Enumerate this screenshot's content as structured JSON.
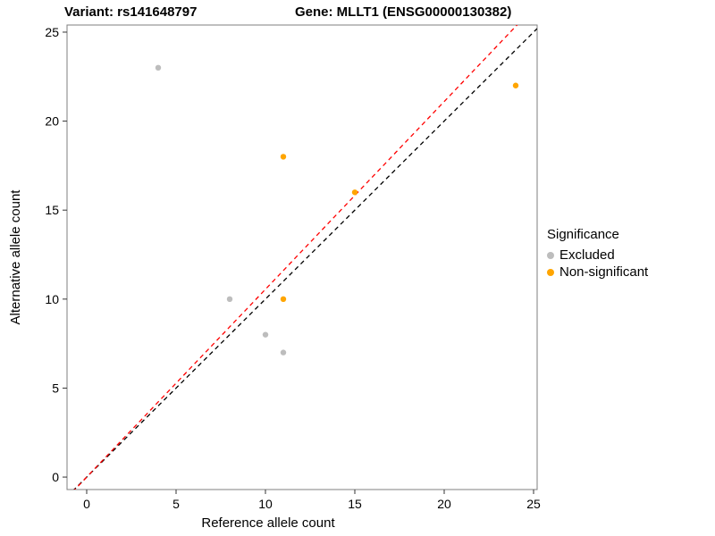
{
  "titles": {
    "variant": "Variant: rs141648797",
    "gene": "Gene: MLLT1 (ENSG00000130382)"
  },
  "axes": {
    "x_label": "Reference allele count",
    "y_label": "Alternative allele count"
  },
  "legend": {
    "title": "Significance",
    "items": [
      {
        "label": "Excluded",
        "color": "#BDBDBD"
      },
      {
        "label": "Non-significant",
        "color": "#FFA500"
      }
    ]
  },
  "chart_data": {
    "type": "scatter",
    "title": "Variant: rs141648797 | Gene: MLLT1 (ENSG00000130382)",
    "xlabel": "Reference allele count",
    "ylabel": "Alternative allele count",
    "xlim": [
      -1.1,
      25.2
    ],
    "ylim": [
      -0.7,
      25.4
    ],
    "x_ticks": [
      0,
      5,
      10,
      15,
      20,
      25
    ],
    "y_ticks": [
      0,
      5,
      10,
      15,
      20,
      25
    ],
    "grid": false,
    "legend_position": "right",
    "series": [
      {
        "name": "Excluded",
        "color": "#BDBDBD",
        "points": [
          [
            4,
            23
          ],
          [
            8,
            10
          ],
          [
            10,
            8
          ],
          [
            11,
            7
          ]
        ]
      },
      {
        "name": "Non-significant",
        "color": "#FFA500",
        "points": [
          [
            11,
            18
          ],
          [
            15,
            16
          ],
          [
            11,
            10
          ],
          [
            24,
            22
          ]
        ]
      }
    ],
    "lines": [
      {
        "name": "identity-line",
        "slope": 1.0,
        "intercept": 0,
        "color": "#000000",
        "dash": "5,4"
      },
      {
        "name": "fit-line",
        "slope": 1.055,
        "intercept": 0,
        "color": "#FF0000",
        "dash": "5,4"
      }
    ]
  }
}
